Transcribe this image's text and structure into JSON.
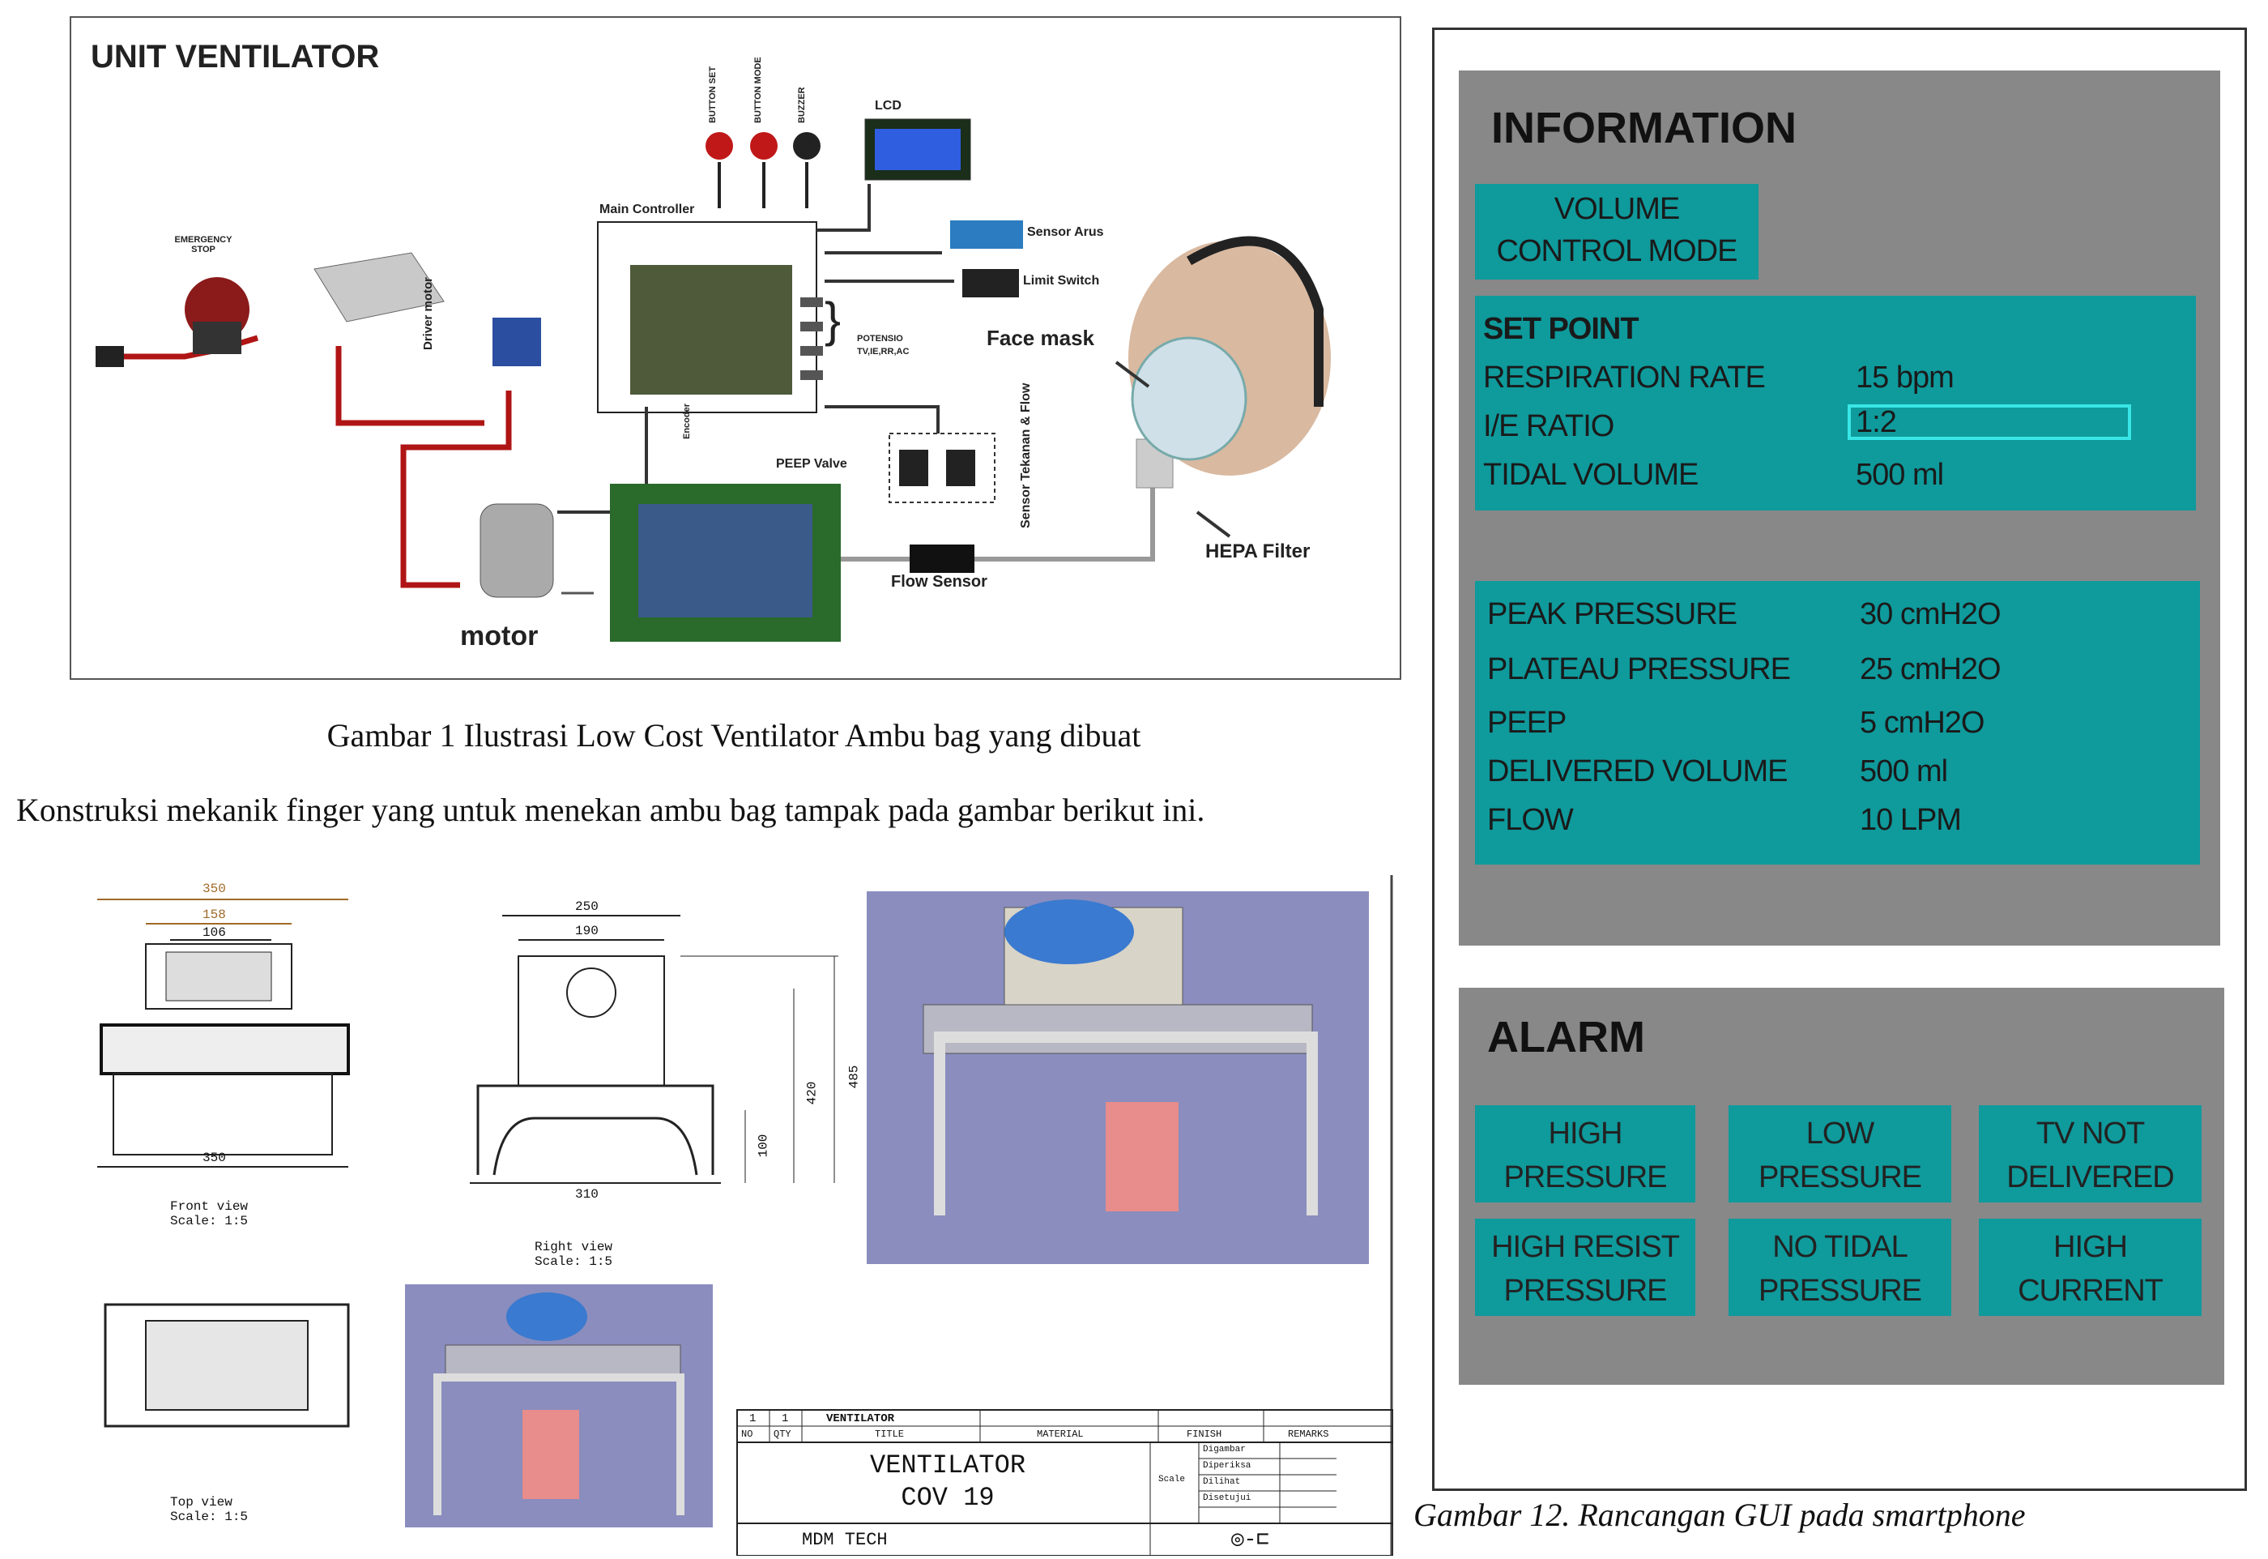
{
  "fig1": {
    "title": "UNIT VENTILATOR",
    "labels": {
      "emergency_stop": "EMERGENCY STOP",
      "main_controller": "Main Controller",
      "driver_motor": "Driver motor",
      "encoder": "Encoder",
      "button_set": "BUTTON SET",
      "button_mode": "BUTTON MODE",
      "buzzer": "BUZZER",
      "lcd": "LCD",
      "sensor_arus": "Sensor Arus",
      "limit_switch": "Limit Switch",
      "potensio": "POTENSIO",
      "potensio_sub": "TV,IE,RR,AC",
      "face_mask": "Face mask",
      "sensor_tekanan": "Sensor Tekanan & Flow",
      "peep_valve": "PEEP Valve",
      "flow_sensor": "Flow Sensor",
      "hepa_filter": "HEPA Filter",
      "motor": "motor"
    },
    "caption": "Gambar 1 Ilustrasi Low Cost Ventilator Ambu bag yang dibuat"
  },
  "paragraph": "Konstruksi mekanik finger yang untuk menekan ambu bag tampak pada gambar berikut ini.",
  "drawing": {
    "front_dims": [
      "350",
      "158",
      "106"
    ],
    "front_bottom": "350",
    "front_caption": "Front view",
    "front_scale": "Scale:  1:5",
    "right_dims": [
      "250",
      "190"
    ],
    "right_vert": [
      "485",
      "420",
      "100"
    ],
    "right_bottom": "310",
    "right_caption": "Right view",
    "right_scale": "Scale:  1:5",
    "top_caption": "Top view",
    "top_scale": "Scale:  1:5",
    "title_block": {
      "row1": [
        "1",
        "1",
        "VENTILATOR"
      ],
      "headers": [
        "NO",
        "QTY",
        "TITLE",
        "MATERIAL",
        "FINISH",
        "REMARKS"
      ],
      "main_title_1": "VENTILATOR",
      "main_title_2": "COV 19",
      "scale_label": "Scale",
      "sign_rows": [
        "Digambar",
        "Diperiksa",
        "Dilihat",
        "Disetujui"
      ],
      "company": "MDM TECH"
    }
  },
  "gui": {
    "info_title": "INFORMATION",
    "mode_line1": "VOLUME",
    "mode_line2": "CONTROL MODE",
    "setpoint_title": "SET POINT",
    "setpoints": [
      {
        "label": "RESPIRATION RATE",
        "value": "15 bpm"
      },
      {
        "label": "I/E RATIO",
        "value": "1:2"
      },
      {
        "label": "TIDAL VOLUME",
        "value": "500 ml"
      }
    ],
    "readings": [
      {
        "label": "PEAK PRESSURE",
        "value": "30 cmH2O"
      },
      {
        "label": "PLATEAU PRESSURE",
        "value": "25 cmH2O"
      },
      {
        "label": "PEEP",
        "value": "5 cmH2O"
      },
      {
        "label": "DELIVERED VOLUME",
        "value": "500 ml"
      },
      {
        "label": "FLOW",
        "value": "10 LPM"
      }
    ],
    "alarm_title": "ALARM",
    "alarms": [
      {
        "l1": "HIGH",
        "l2": "PRESSURE"
      },
      {
        "l1": "LOW",
        "l2": "PRESSURE"
      },
      {
        "l1": "TV NOT",
        "l2": "DELIVERED"
      },
      {
        "l1": "HIGH RESIST",
        "l2": "PRESSURE"
      },
      {
        "l1": "NO TIDAL",
        "l2": "PRESSURE"
      },
      {
        "l1": "HIGH",
        "l2": "CURRENT"
      }
    ],
    "caption": "Gambar 12. Rancangan GUI pada smartphone",
    "colors": {
      "panel": "#888888",
      "teal": "#0f9a9c",
      "highlight": "#39e6e6"
    }
  }
}
